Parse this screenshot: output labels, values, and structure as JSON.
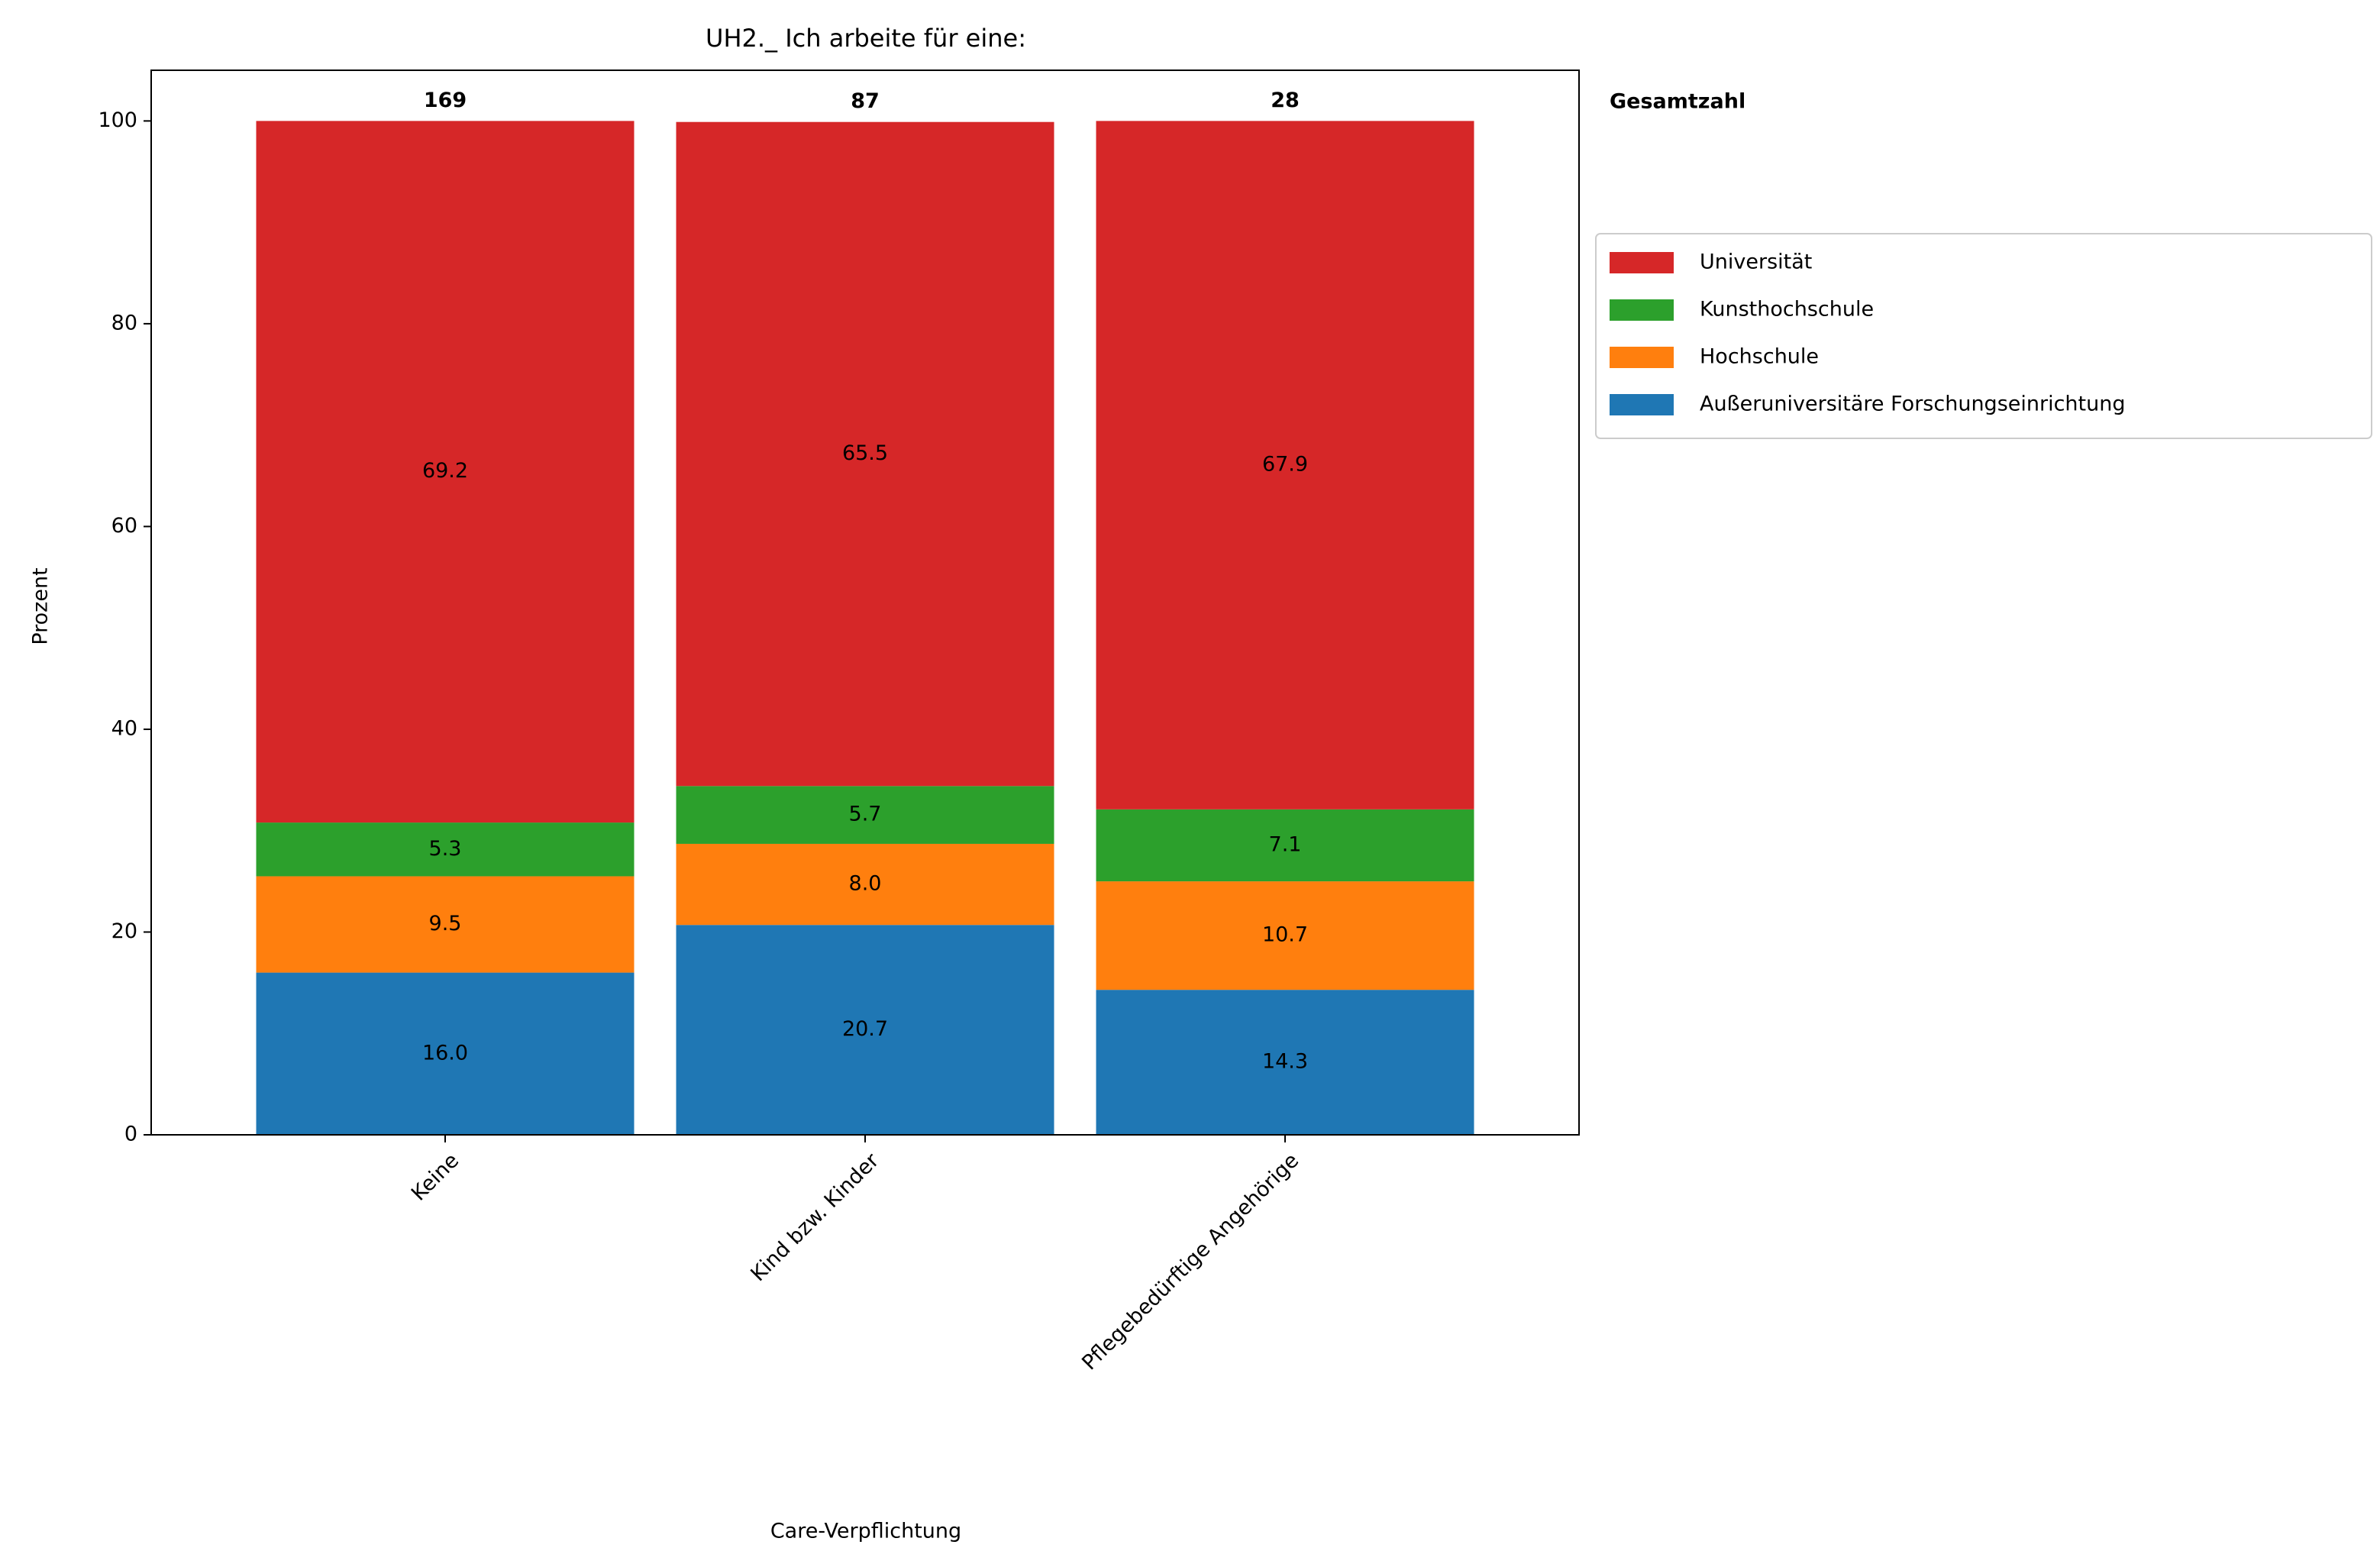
{
  "chart_data": {
    "type": "stacked_bar",
    "title": "UH2._ Ich arbeite für eine:",
    "x_label": "Care-Verpflichtung",
    "y_label": "Prozent",
    "categories": [
      "Keine",
      "Kind bzw. Kinder",
      "Pflegebedürftige Angehörige"
    ],
    "series": [
      {
        "name": "Außeruniversitäre Forschungseinrichtung",
        "color": "#1f77b4",
        "values": [
          16.0,
          20.7,
          14.3
        ],
        "value_labels": [
          "16.0",
          "20.7",
          "14.3"
        ]
      },
      {
        "name": "Hochschule",
        "color": "#ff7f0e",
        "values": [
          9.5,
          8.0,
          10.7
        ],
        "value_labels": [
          "9.5",
          "8.0",
          "10.7"
        ]
      },
      {
        "name": "Kunsthochschule",
        "color": "#2ca02c",
        "values": [
          5.3,
          5.7,
          7.1
        ],
        "value_labels": [
          "5.3",
          "5.7",
          "7.1"
        ]
      },
      {
        "name": "Universität",
        "color": "#d62728",
        "values": [
          69.2,
          65.5,
          67.9
        ],
        "value_labels": [
          "69.2",
          "65.5",
          "67.9"
        ]
      }
    ],
    "totals": {
      "label": "Gesamtzahl",
      "values": [
        169,
        87,
        28
      ]
    },
    "ylim": [
      0,
      105
    ],
    "yticks": [
      0,
      20,
      40,
      60,
      80,
      100
    ],
    "legend": "right"
  }
}
